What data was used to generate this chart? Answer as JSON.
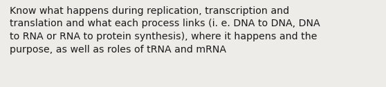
{
  "text": "Know what happens during replication, transcription and\ntranslation and what each process links (i. e. DNA to DNA, DNA\nto RNA or RNA to protein synthesis), where it happens and the\npurpose, as well as roles of tRNA and mRNA",
  "background_color": "#eeece9",
  "text_color": "#1a1a1a",
  "font_size": 10.2,
  "fig_width": 5.58,
  "fig_height": 1.26,
  "dpi": 100
}
